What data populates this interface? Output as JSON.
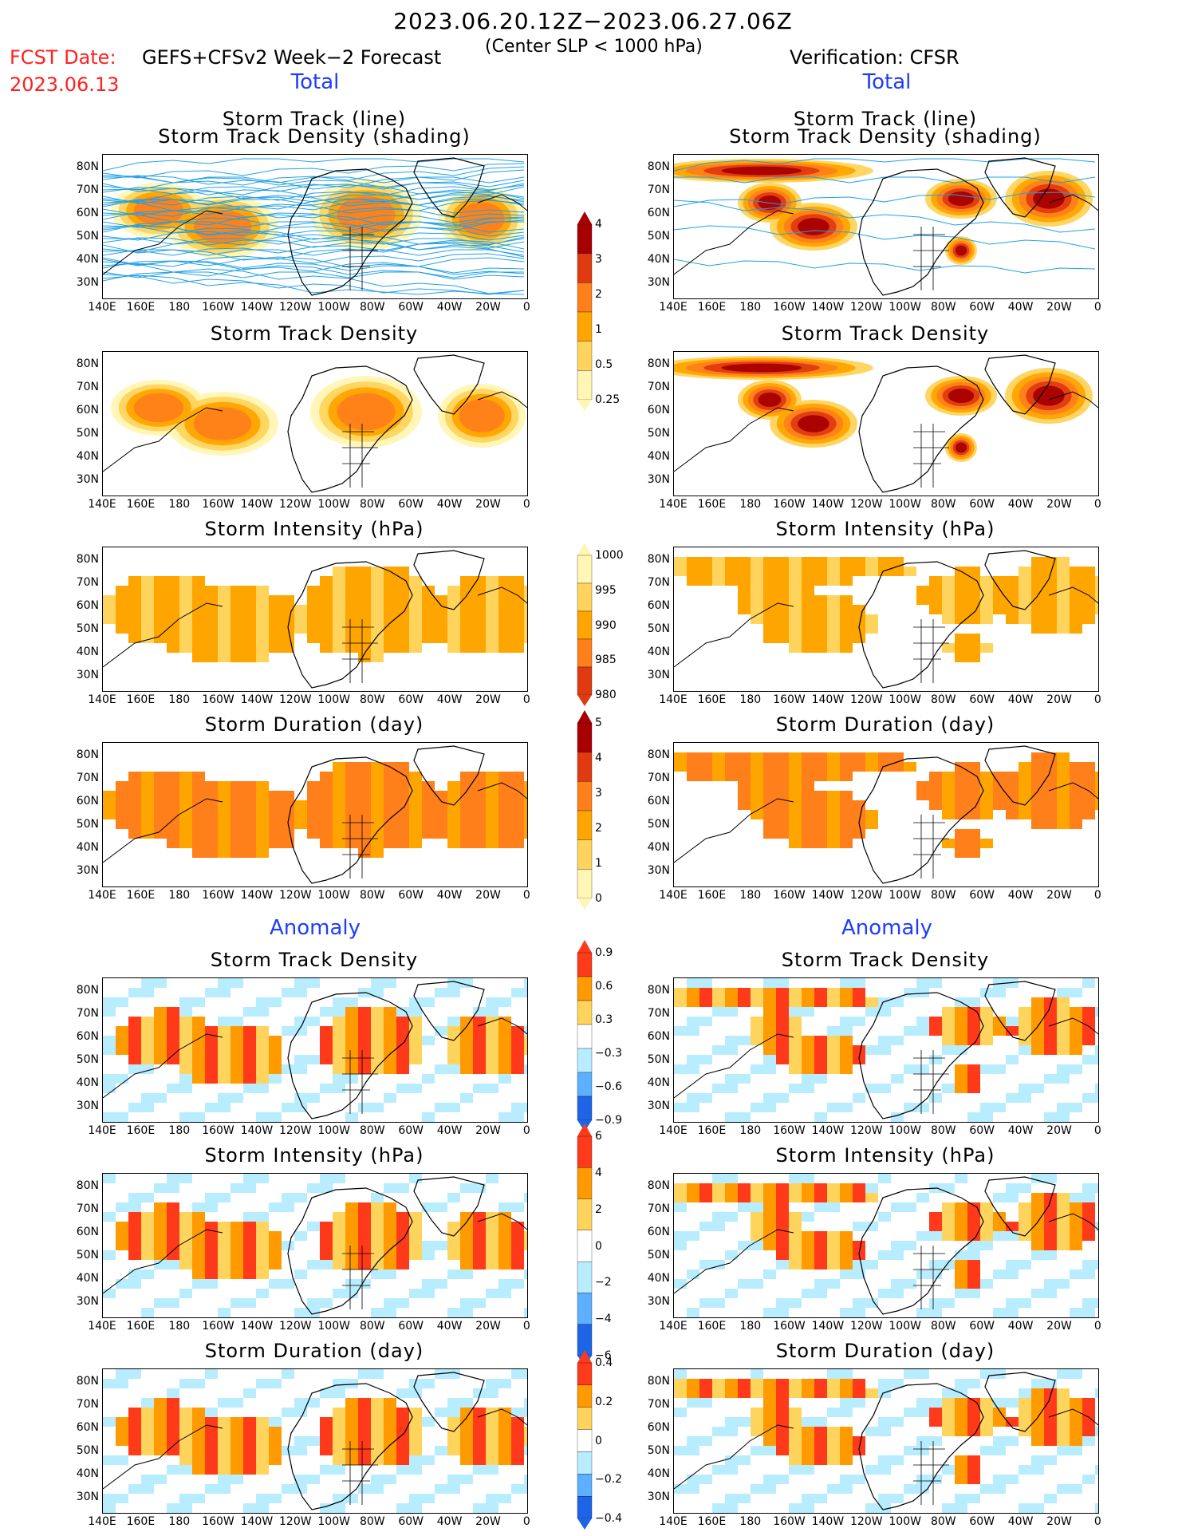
{
  "header": {
    "period": "2023.06.20.12Z−2023.06.27.06Z",
    "fcst_label": "FCST Date:",
    "fcst_date": "2023.06.13",
    "model": "GEFS+CFSv2 Week−2 Forecast",
    "criterion": "(Center SLP < 1000 hPa)",
    "verification": "Verification: CFSR"
  },
  "sections": {
    "total_label": "Total",
    "anomaly_label": "Anomaly"
  },
  "axes": {
    "lat_labels": [
      "80N",
      "70N",
      "60N",
      "50N",
      "40N",
      "30N"
    ],
    "lon_labels": [
      "140E",
      "160E",
      "180",
      "160W",
      "140W",
      "120W",
      "100W",
      "80W",
      "60W",
      "40W",
      "20W",
      "0"
    ]
  },
  "panel_titles": {
    "track_line_1": "Storm Track (line)",
    "track_line_2": "Storm Track Density (shading)",
    "density": "Storm Track Density",
    "intensity": "Storm Intensity (hPa)",
    "duration": "Storm Duration (day)"
  },
  "colorbars": {
    "density_total": [
      "4",
      "3",
      "2",
      "1",
      "0.5",
      "0.25"
    ],
    "intensity_total": [
      "1000",
      "995",
      "990",
      "985",
      "980"
    ],
    "duration_total": [
      "5",
      "4",
      "3",
      "2",
      "1",
      "0"
    ],
    "density_anom": [
      "0.9",
      "0.6",
      "0.3",
      "−0.3",
      "−0.6",
      "−0.9"
    ],
    "intensity_anom": [
      "6",
      "4",
      "2",
      "0",
      "−2",
      "−4",
      "−6"
    ],
    "duration_anom": [
      "0.4",
      "0.2",
      "0",
      "−0.2",
      "−0.4"
    ]
  },
  "colors": {
    "total_scale": [
      "#fff6b3",
      "#ffd45c",
      "#ffa500",
      "#ff7f1a",
      "#e03a10",
      "#a80000"
    ],
    "anom_pos": [
      "#ffd45c",
      "#ff9a00",
      "#ff3a1a"
    ],
    "anom_neg": [
      "#b8ecff",
      "#5cb0ff",
      "#1e64e6"
    ],
    "track_lines": "#22a0e8",
    "section_labels": "#1e3cff",
    "fcst_labels": "#ff2020"
  }
}
